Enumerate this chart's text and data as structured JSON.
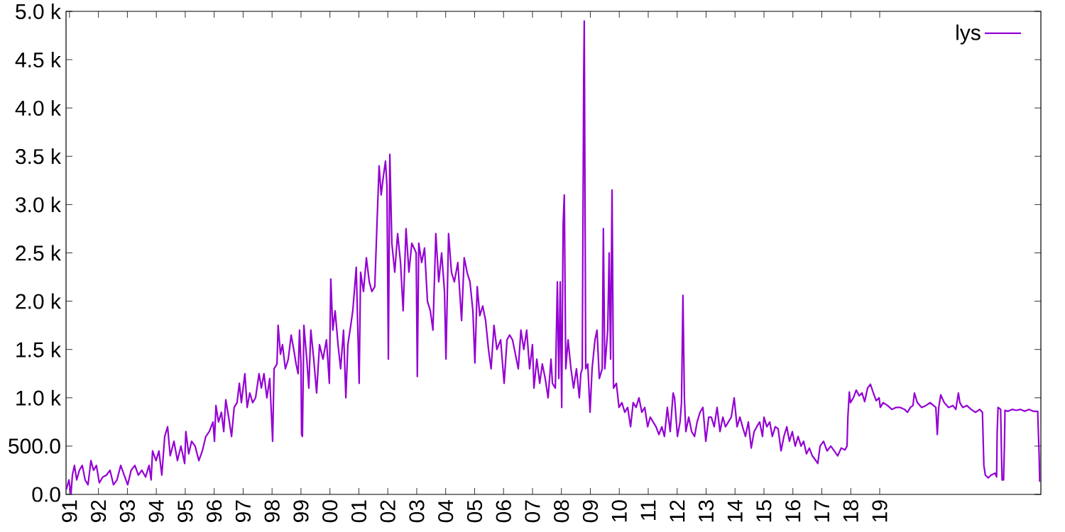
{
  "chart_data": {
    "type": "line",
    "xlim": [
      1990.88,
      2024.57
    ],
    "ylim": [
      0,
      5000
    ],
    "xticks": [
      {
        "value": 1991,
        "label": "91"
      },
      {
        "value": 1992,
        "label": "92"
      },
      {
        "value": 1993,
        "label": "93"
      },
      {
        "value": 1994,
        "label": "94"
      },
      {
        "value": 1995,
        "label": "95"
      },
      {
        "value": 1996,
        "label": "96"
      },
      {
        "value": 1997,
        "label": "97"
      },
      {
        "value": 1998,
        "label": "98"
      },
      {
        "value": 1999,
        "label": "99"
      },
      {
        "value": 2000,
        "label": "00"
      },
      {
        "value": 2001,
        "label": "01"
      },
      {
        "value": 2002,
        "label": "02"
      },
      {
        "value": 2003,
        "label": "03"
      },
      {
        "value": 2004,
        "label": "04"
      },
      {
        "value": 2005,
        "label": "05"
      },
      {
        "value": 2006,
        "label": "06"
      },
      {
        "value": 2007,
        "label": "07"
      },
      {
        "value": 2008,
        "label": "08"
      },
      {
        "value": 2009,
        "label": "09"
      },
      {
        "value": 2010,
        "label": "10"
      },
      {
        "value": 2011,
        "label": "11"
      },
      {
        "value": 2012,
        "label": "12"
      },
      {
        "value": 2013,
        "label": "13"
      },
      {
        "value": 2014,
        "label": "14"
      },
      {
        "value": 2015,
        "label": "15"
      },
      {
        "value": 2016,
        "label": "16"
      },
      {
        "value": 2017,
        "label": "17"
      },
      {
        "value": 2018,
        "label": "18"
      },
      {
        "value": 2019,
        "label": "19"
      }
    ],
    "yticks": [
      {
        "value": 0,
        "label": "0.0"
      },
      {
        "value": 500,
        "label": "500.0"
      },
      {
        "value": 1000,
        "label": "1.0 k"
      },
      {
        "value": 1500,
        "label": "1.5 k"
      },
      {
        "value": 2000,
        "label": "2.0 k"
      },
      {
        "value": 2500,
        "label": "2.5 k"
      },
      {
        "value": 3000,
        "label": "3.0 k"
      },
      {
        "value": 3500,
        "label": "3.5 k"
      },
      {
        "value": 4000,
        "label": "4.0 k"
      },
      {
        "value": 4500,
        "label": "4.5 k"
      },
      {
        "value": 5000,
        "label": "5.0 k"
      }
    ],
    "legend": "top right",
    "line_style": "solid",
    "x": [
      1990.89,
      1990.98,
      1991.05,
      1991.1,
      1991.17,
      1991.25,
      1991.34,
      1991.44,
      1991.54,
      1991.64,
      1991.74,
      1991.83,
      1991.93,
      1992.03,
      1992.15,
      1992.28,
      1992.4,
      1992.52,
      1992.64,
      1992.77,
      1992.89,
      1993.01,
      1993.13,
      1993.26,
      1993.38,
      1993.5,
      1993.63,
      1993.75,
      1993.82,
      1993.87,
      1993.99,
      1994.09,
      1994.19,
      1994.29,
      1994.39,
      1994.48,
      1994.61,
      1994.73,
      1994.85,
      1994.98,
      1995.02,
      1995.12,
      1995.22,
      1995.34,
      1995.47,
      1995.59,
      1995.71,
      1995.83,
      1995.96,
      1996.01,
      1996.06,
      1996.15,
      1996.25,
      1996.33,
      1996.4,
      1996.5,
      1996.6,
      1996.69,
      1996.79,
      1996.87,
      1996.94,
      1997.06,
      1997.14,
      1997.23,
      1997.33,
      1997.43,
      1997.55,
      1997.63,
      1997.72,
      1997.82,
      1997.92,
      1997.99,
      1998.02,
      1998.07,
      1998.17,
      1998.21,
      1998.29,
      1998.36,
      1998.46,
      1998.56,
      1998.66,
      1998.75,
      1998.83,
      1998.9,
      1998.95,
      1999.0,
      1999.02,
      1999.05,
      1999.1,
      1999.2,
      1999.27,
      1999.34,
      1999.44,
      1999.54,
      1999.64,
      1999.76,
      1999.88,
      1999.98,
      2000.03,
      2000.1,
      2000.18,
      2000.28,
      2000.37,
      2000.47,
      2000.55,
      2000.62,
      2000.72,
      2000.79,
      2000.87,
      2000.91,
      2001.01,
      2001.06,
      2001.16,
      2001.26,
      2001.36,
      2001.45,
      2001.55,
      2001.65,
      2001.7,
      2001.77,
      2001.85,
      2001.92,
      2001.97,
      2002.02,
      2002.07,
      2002.14,
      2002.24,
      2002.34,
      2002.44,
      2002.53,
      2002.63,
      2002.73,
      2002.83,
      2002.98,
      2003.02,
      2003.07,
      2003.17,
      2003.27,
      2003.37,
      2003.47,
      2003.56,
      2003.66,
      2003.76,
      2003.86,
      2003.96,
      2004.01,
      2004.1,
      2004.2,
      2004.3,
      2004.42,
      2004.55,
      2004.64,
      2004.74,
      2004.84,
      2004.94,
      2005.01,
      2005.09,
      2005.18,
      2005.28,
      2005.38,
      2005.48,
      2005.57,
      2005.67,
      2005.77,
      2005.9,
      2006.02,
      2006.12,
      2006.21,
      2006.31,
      2006.41,
      2006.51,
      2006.6,
      2006.7,
      2006.8,
      2006.9,
      2007.0,
      2007.05,
      2007.15,
      2007.25,
      2007.34,
      2007.44,
      2007.54,
      2007.64,
      2007.69,
      2007.79,
      2007.86,
      2007.91,
      2007.96,
      2008.01,
      2008.06,
      2008.1,
      2008.15,
      2008.23,
      2008.33,
      2008.42,
      2008.52,
      2008.62,
      2008.67,
      2008.72,
      2008.77,
      2008.79,
      2008.84,
      2008.91,
      2008.99,
      2009.06,
      2009.16,
      2009.23,
      2009.31,
      2009.41,
      2009.45,
      2009.5,
      2009.6,
      2009.65,
      2009.7,
      2009.75,
      2009.8,
      2009.9,
      2009.99,
      2010.09,
      2010.19,
      2010.29,
      2010.39,
      2010.48,
      2010.58,
      2010.68,
      2010.78,
      2010.88,
      2010.98,
      2011.07,
      2011.17,
      2011.27,
      2011.37,
      2011.47,
      2011.56,
      2011.66,
      2011.76,
      2011.86,
      2011.91,
      2012.01,
      2012.1,
      2012.15,
      2012.2,
      2012.25,
      2012.3,
      2012.4,
      2012.5,
      2012.6,
      2012.69,
      2012.79,
      2012.89,
      2012.99,
      2013.09,
      2013.18,
      2013.28,
      2013.38,
      2013.48,
      2013.58,
      2013.67,
      2013.77,
      2013.87,
      2013.97,
      2014.07,
      2014.17,
      2014.26,
      2014.36,
      2014.46,
      2014.56,
      2014.66,
      2014.75,
      2014.85,
      2014.95,
      2015.0,
      2015.1,
      2015.2,
      2015.29,
      2015.39,
      2015.49,
      2015.59,
      2015.69,
      2015.79,
      2015.88,
      2015.98,
      2016.08,
      2016.18,
      2016.28,
      2016.37,
      2016.47,
      2016.57,
      2016.67,
      2016.77,
      2016.86,
      2016.94,
      2017.06,
      2017.18,
      2017.31,
      2017.43,
      2017.55,
      2017.67,
      2017.8,
      2017.87,
      2017.9,
      2017.95,
      2017.99,
      2018.09,
      2018.19,
      2018.29,
      2018.39,
      2018.48,
      2018.58,
      2018.68,
      2018.78,
      2018.88,
      2018.98,
      2019.02,
      2019.12,
      2019.27,
      2019.42,
      2019.56,
      2019.71,
      2019.86,
      2019.96,
      2020.06,
      2020.15,
      2020.2,
      2020.3,
      2020.45,
      2020.6,
      2020.74,
      2020.94,
      2020.99,
      2021.04,
      2021.11,
      2021.23,
      2021.38,
      2021.53,
      2021.63,
      2021.72,
      2021.77,
      2021.87,
      2022.01,
      2022.16,
      2022.31,
      2022.46,
      2022.55,
      2022.6,
      2022.65,
      2022.75,
      2022.85,
      2022.99,
      2023.04,
      2023.06,
      2023.09,
      2023.18,
      2023.21,
      2023.23,
      2023.28,
      2023.31,
      2023.33,
      2023.43,
      2023.58,
      2023.72,
      2023.87,
      2024.01,
      2024.16,
      2024.31,
      2024.46,
      2024.51,
      2024.53
    ],
    "series": [
      {
        "name": "lys",
        "color": "#9400d3",
        "values": [
          50,
          150,
          0,
          200,
          300,
          150,
          250,
          300,
          150,
          100,
          350,
          250,
          300,
          120,
          180,
          200,
          250,
          100,
          150,
          300,
          200,
          100,
          250,
          300,
          200,
          250,
          180,
          300,
          150,
          450,
          350,
          450,
          200,
          600,
          700,
          400,
          550,
          350,
          500,
          320,
          650,
          420,
          550,
          500,
          350,
          450,
          600,
          650,
          750,
          550,
          920,
          750,
          850,
          650,
          980,
          800,
          600,
          900,
          950,
          1150,
          950,
          1250,
          900,
          1050,
          950,
          1000,
          1250,
          1100,
          1250,
          1000,
          1200,
          750,
          550,
          1300,
          1350,
          1750,
          1450,
          1550,
          1300,
          1400,
          1650,
          1500,
          1350,
          1250,
          1700,
          1350,
          620,
          600,
          1750,
          1400,
          1100,
          1700,
          1400,
          1050,
          1550,
          1400,
          1600,
          1150,
          2230,
          1700,
          1900,
          1550,
          1300,
          1700,
          1000,
          1550,
          1750,
          1900,
          2200,
          2350,
          1150,
          2300,
          2100,
          2450,
          2200,
          2100,
          2150,
          3000,
          3400,
          3100,
          3300,
          3450,
          3200,
          1400,
          3520,
          2600,
          2300,
          2700,
          2400,
          1900,
          2750,
          2300,
          2600,
          2500,
          1220,
          2600,
          2400,
          2550,
          2000,
          1900,
          1700,
          2700,
          2200,
          2500,
          2100,
          1400,
          2700,
          2300,
          2200,
          2400,
          1800,
          2450,
          2300,
          2200,
          1900,
          1360,
          2150,
          1850,
          1950,
          1800,
          1500,
          1300,
          1750,
          1500,
          1600,
          1150,
          1600,
          1650,
          1600,
          1450,
          1300,
          1700,
          1500,
          1700,
          1300,
          1550,
          1100,
          1400,
          1150,
          1350,
          1200,
          1000,
          1400,
          1150,
          1100,
          2200,
          1200,
          2200,
          900,
          2800,
          3100,
          1300,
          1600,
          1300,
          1100,
          1300,
          1000,
          1250,
          1300,
          4300,
          4900,
          1300,
          1350,
          850,
          1300,
          1600,
          1700,
          1200,
          1300,
          2750,
          1300,
          1700,
          2500,
          1400,
          3150,
          1100,
          1150,
          900,
          950,
          850,
          900,
          700,
          950,
          900,
          1000,
          850,
          900,
          700,
          800,
          750,
          700,
          620,
          700,
          600,
          900,
          650,
          1050,
          1000,
          600,
          750,
          950,
          2060,
          1000,
          650,
          800,
          650,
          600,
          750,
          850,
          900,
          550,
          800,
          800,
          700,
          900,
          650,
          800,
          700,
          750,
          800,
          1000,
          700,
          800,
          700,
          600,
          750,
          480,
          650,
          700,
          750,
          600,
          800,
          700,
          750,
          600,
          700,
          680,
          450,
          600,
          700,
          550,
          650,
          500,
          600,
          500,
          550,
          420,
          480,
          400,
          360,
          320,
          500,
          550,
          450,
          500,
          450,
          400,
          480,
          460,
          500,
          800,
          1060,
          950,
          1000,
          1080,
          1020,
          1050,
          960,
          1100,
          1140,
          1050,
          970,
          1000,
          900,
          950,
          920,
          880,
          900,
          900,
          880,
          850,
          900,
          920,
          1050,
          950,
          900,
          920,
          950,
          900,
          620,
          900,
          1030,
          950,
          900,
          920,
          880,
          1050,
          950,
          900,
          920,
          880,
          850,
          880,
          850,
          300,
          200,
          170,
          200,
          220,
          180,
          650,
          900,
          880,
          400,
          150,
          150,
          500,
          870,
          860,
          880,
          870,
          880,
          860,
          880,
          860,
          860,
          400,
          130
        ]
      }
    ]
  }
}
